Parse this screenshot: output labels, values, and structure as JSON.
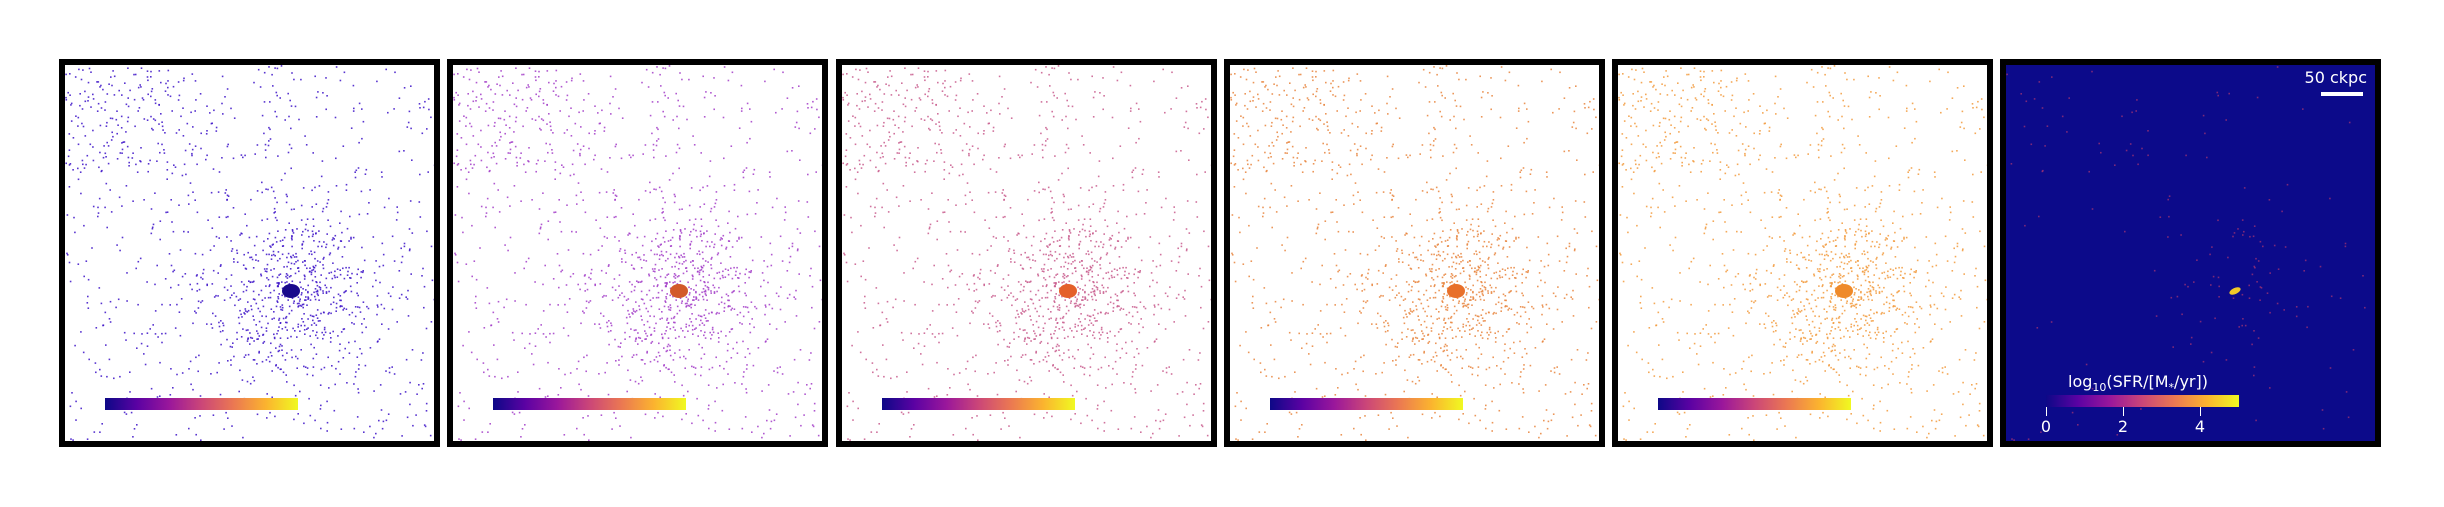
{
  "figure": {
    "panels": [
      {
        "id": "p1",
        "style": "scatter",
        "color": "#3b10c8",
        "core": "#1a0a8c"
      },
      {
        "id": "p2",
        "style": "scatter",
        "color": "#a23cc8",
        "core": "#d25a2a"
      },
      {
        "id": "p3",
        "style": "scatter",
        "color": "#c85a8c",
        "core": "#e4602a"
      },
      {
        "id": "p4",
        "style": "scatter",
        "color": "#e8843c",
        "core": "#e8702a"
      },
      {
        "id": "p5",
        "style": "scatter",
        "color": "#f29a3c",
        "core": "#ef8a2a"
      },
      {
        "id": "p6",
        "style": "map",
        "color": "#c83c6e",
        "core": "#f0c828"
      }
    ],
    "colorbar": {
      "title_prefix": "log",
      "title_sub": "10",
      "title_rest": "(SFR/[M",
      "title_sub2": "*",
      "title_end": "/yr])",
      "ticks": [
        "0",
        "2",
        "4"
      ],
      "colormap": "plasma"
    },
    "scalebar": {
      "label": "50 ckpc"
    }
  }
}
